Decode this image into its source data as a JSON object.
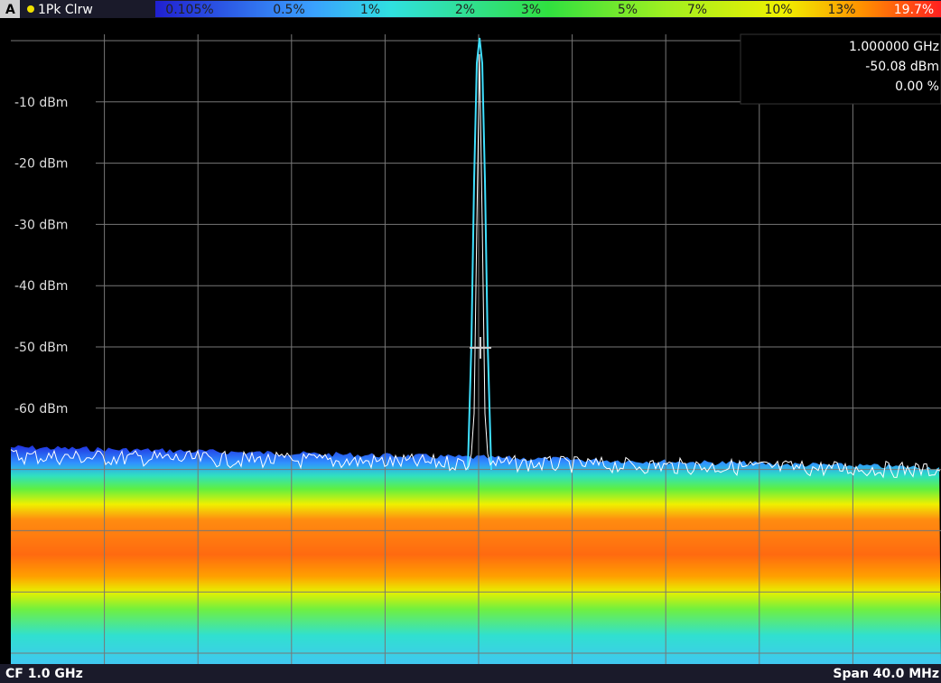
{
  "header": {
    "window": "A",
    "trace_mode": "1Pk Clrw",
    "color_scale": [
      "0.105%",
      "0.5%",
      "1%",
      "2%",
      "3%",
      "5%",
      "7%",
      "10%",
      "13%",
      "19.7%"
    ]
  },
  "marker": {
    "frequency": "1.000000 GHz",
    "level": "-50.08 dBm",
    "percent": "0.00 %"
  },
  "y_axis": {
    "labels": [
      "-10 dBm",
      "-20 dBm",
      "-30 dBm",
      "-40 dBm",
      "-50 dBm",
      "-60 dBm"
    ]
  },
  "footer": {
    "center": "CF 1.0 GHz",
    "span": "Span 40.0 MHz"
  }
}
